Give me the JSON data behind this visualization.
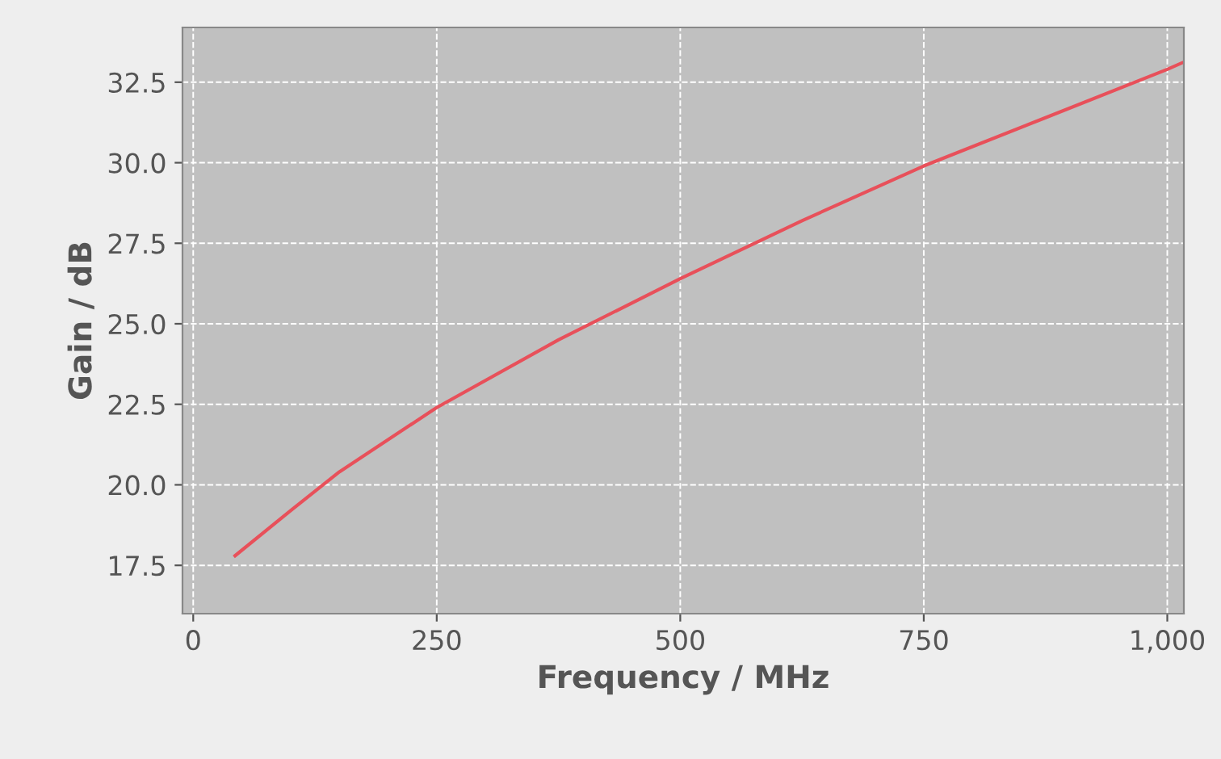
{
  "chart_data": {
    "type": "line",
    "xlabel": "Frequency / MHz",
    "ylabel": "Gain / dB",
    "x": [
      43,
      100,
      150,
      250,
      375,
      500,
      625,
      750,
      875,
      1000,
      1015
    ],
    "series": [
      {
        "color": "#e8505a",
        "values": [
          17.8,
          19.2,
          20.4,
          22.4,
          24.5,
          26.4,
          28.2,
          29.9,
          31.4,
          32.9,
          33.1
        ]
      }
    ],
    "xlim": [
      -11,
      1017
    ],
    "ylim": [
      16.0,
      34.2
    ],
    "xticks": [
      0,
      250,
      500,
      750,
      {
        "value": 1000,
        "label": "1,000"
      }
    ],
    "yticks": [
      {
        "value": 17.5,
        "label": "17.5"
      },
      {
        "value": 20.0,
        "label": "20.0"
      },
      {
        "value": 22.5,
        "label": "22.5"
      },
      {
        "value": 25.0,
        "label": "25.0"
      },
      {
        "value": 27.5,
        "label": "27.5"
      },
      {
        "value": 30.0,
        "label": "30.0"
      },
      {
        "value": 32.5,
        "label": "32.5"
      }
    ],
    "grid": true,
    "marker": "none",
    "line_style": "solid",
    "legend": false
  }
}
